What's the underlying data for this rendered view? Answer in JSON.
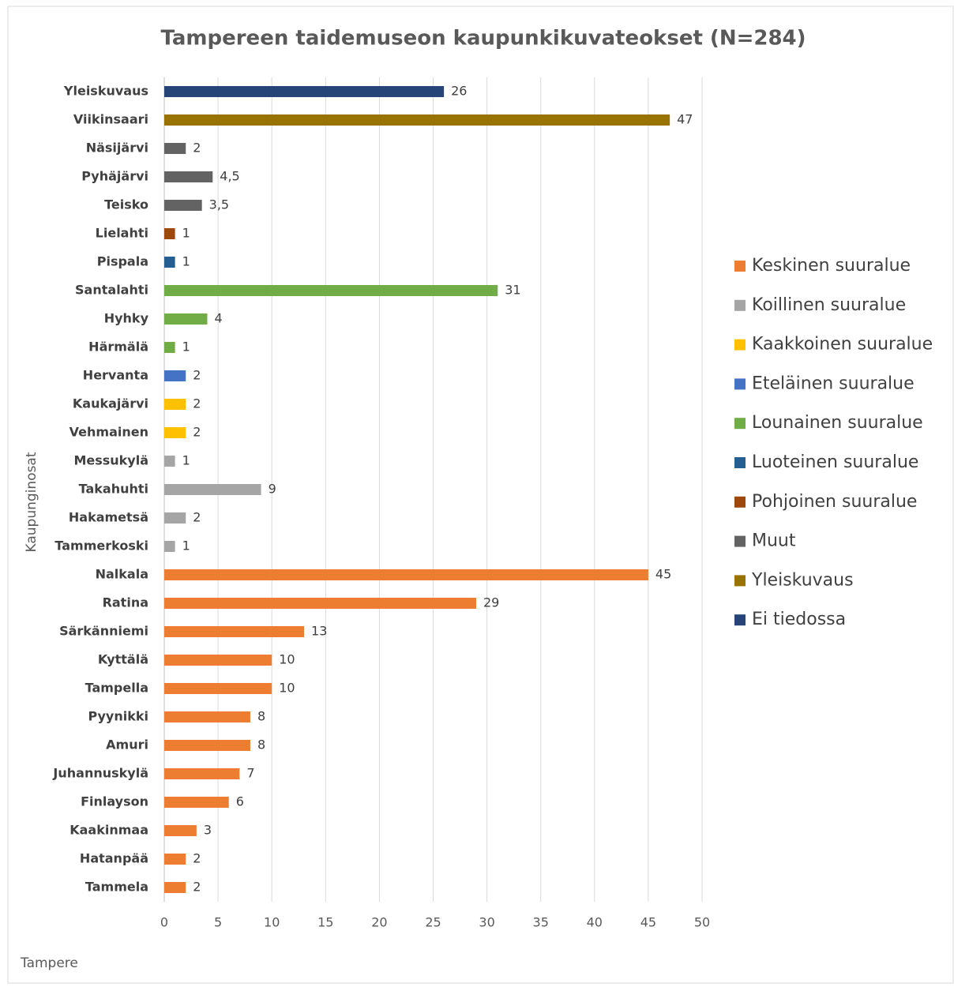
{
  "chart_data": {
    "type": "bar",
    "orientation": "horizontal",
    "title": "Tampereen taidemuseon kaupunkikuvateokset (N=284)",
    "y_label": "Kaupunginosat",
    "footer": "Tampere",
    "categories": [
      "Yleiskuvaus",
      "Viikinsaari",
      "Näsijärvi",
      "Pyhäjärvi",
      "Teisko",
      "Lielahti",
      "Pispala",
      "Santalahti",
      "Hyhky",
      "Härmälä",
      "Hervanta",
      "Kaukajärvi",
      "Vehmainen",
      "Messukylä",
      "Takahuhti",
      "Hakametsä",
      "Tammerkoski",
      "Nalkala",
      "Ratina",
      "Särkänniemi",
      "Kyttälä",
      "Tampella",
      "Pyynikki",
      "Amuri",
      "Juhannuskylä",
      "Finlayson",
      "Kaakinmaa",
      "Hatanpää",
      "Tammela"
    ],
    "values": [
      26,
      47,
      2,
      4.5,
      3.5,
      1,
      1,
      31,
      4,
      1,
      2,
      2,
      2,
      1,
      9,
      2,
      1,
      45,
      29,
      13,
      10,
      10,
      8,
      8,
      7,
      6,
      3,
      2,
      2
    ],
    "value_labels": [
      "26",
      "47",
      "2",
      "4,5",
      "3,5",
      "1",
      "1",
      "31",
      "4",
      "1",
      "2",
      "2",
      "2",
      "1",
      "9",
      "2",
      "1",
      "45",
      "29",
      "13",
      "10",
      "10",
      "8",
      "8",
      "7",
      "6",
      "3",
      "2",
      "2"
    ],
    "colors": [
      "#264478",
      "#997300",
      "#636363",
      "#636363",
      "#636363",
      "#9e480e",
      "#255e91",
      "#70ad47",
      "#70ad47",
      "#70ad47",
      "#4472c4",
      "#ffc000",
      "#ffc000",
      "#a5a5a5",
      "#a5a5a5",
      "#a5a5a5",
      "#a5a5a5",
      "#ed7d31",
      "#ed7d31",
      "#ed7d31",
      "#ed7d31",
      "#ed7d31",
      "#ed7d31",
      "#ed7d31",
      "#ed7d31",
      "#ed7d31",
      "#ed7d31",
      "#ed7d31",
      "#ed7d31"
    ],
    "legend": [
      {
        "name": "Keskinen suuralue",
        "color": "#ed7d31"
      },
      {
        "name": "Koillinen suuralue",
        "color": "#a5a5a5"
      },
      {
        "name": "Kaakkoinen suuralue",
        "color": "#ffc000"
      },
      {
        "name": "Eteläinen suuralue",
        "color": "#4472c4"
      },
      {
        "name": "Lounainen suuralue",
        "color": "#70ad47"
      },
      {
        "name": "Luoteinen suuralue",
        "color": "#255e91"
      },
      {
        "name": "Pohjoinen suuralue",
        "color": "#9e480e"
      },
      {
        "name": "Muut",
        "color": "#636363"
      },
      {
        "name": "Yleiskuvaus",
        "color": "#997300"
      },
      {
        "name": "Ei tiedossa",
        "color": "#264478"
      }
    ],
    "xlim": [
      0,
      50
    ],
    "xticks": [
      0,
      5,
      10,
      15,
      20,
      25,
      30,
      35,
      40,
      45,
      50
    ],
    "grid": true
  }
}
